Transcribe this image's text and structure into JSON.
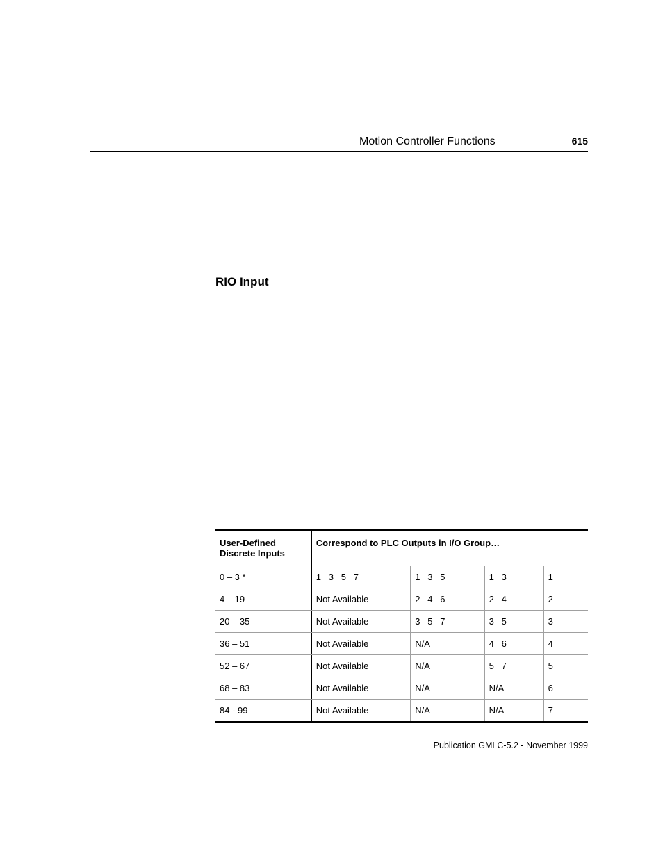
{
  "header": {
    "title": "Motion Controller Functions",
    "page_number": "615"
  },
  "section": {
    "heading": "RIO Input"
  },
  "table": {
    "header_left": "User-Defined\nDiscrete Inputs",
    "header_right": "Correspond to PLC Outputs in I/O Group…",
    "rows": [
      {
        "c1": "0 – 3 *",
        "c2": [
          "1",
          "3",
          "5",
          "7"
        ],
        "c3": [
          "1",
          "3",
          "5"
        ],
        "c4": [
          "1",
          "3"
        ],
        "c5": "1"
      },
      {
        "c1": "4 – 19",
        "c2_text": "Not Available",
        "c3": [
          "2",
          "4",
          "6"
        ],
        "c4": [
          "2",
          "4"
        ],
        "c5": "2"
      },
      {
        "c1": "20 – 35",
        "c2_text": "Not Available",
        "c3": [
          "3",
          "5",
          "7"
        ],
        "c4": [
          "3",
          "5"
        ],
        "c5": "3"
      },
      {
        "c1": "36 – 51",
        "c2_text": "Not Available",
        "c3_text": "N/A",
        "c4": [
          "4",
          "6"
        ],
        "c5": "4"
      },
      {
        "c1": "52 – 67",
        "c2_text": "Not Available",
        "c3_text": "N/A",
        "c4": [
          "5",
          "7"
        ],
        "c5": "5"
      },
      {
        "c1": "68 – 83",
        "c2_text": "Not Available",
        "c3_text": "N/A",
        "c4_text": "N/A",
        "c5": "6"
      },
      {
        "c1": "84 - 99",
        "c2_text": "Not Available",
        "c3_text": "N/A",
        "c4_text": "N/A",
        "c5": "7"
      }
    ]
  },
  "footer": {
    "publication": "Publication GMLC-5.2 - November 1999"
  }
}
